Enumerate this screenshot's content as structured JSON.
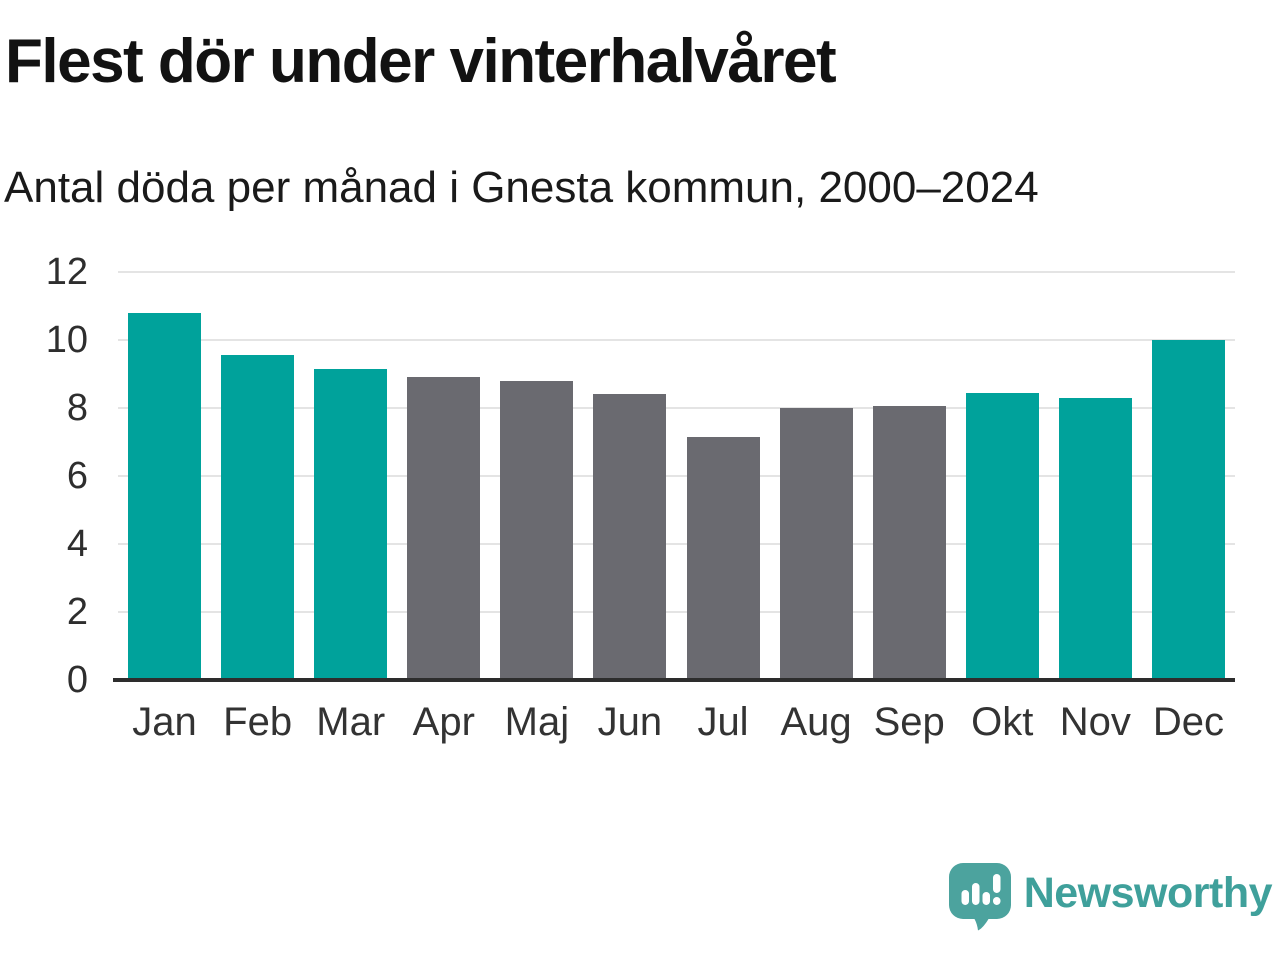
{
  "chart_data": {
    "type": "bar",
    "title": "Flest dör under vinterhalvåret",
    "subtitle": "Antal döda per månad i Gnesta kommun, 2000–2024",
    "categories": [
      "Jan",
      "Feb",
      "Mar",
      "Apr",
      "Maj",
      "Jun",
      "Jul",
      "Aug",
      "Sep",
      "Okt",
      "Nov",
      "Dec"
    ],
    "values": [
      10.8,
      9.55,
      9.15,
      8.9,
      8.8,
      8.4,
      7.15,
      8.0,
      8.05,
      8.45,
      8.3,
      10.0
    ],
    "highlighted": [
      true,
      true,
      true,
      false,
      false,
      false,
      false,
      false,
      false,
      true,
      true,
      true
    ],
    "ylabel": "",
    "xlabel": "",
    "ylim": [
      0,
      12
    ],
    "yticks": [
      0,
      2,
      4,
      6,
      8,
      10,
      12
    ],
    "grid": true,
    "legend": "none",
    "colors": {
      "highlight": "#00a29b",
      "base": "#6a6a70",
      "gridline": "#e4e4e4",
      "axis_line": "#2d2d2d",
      "tick_label": "#333333"
    }
  },
  "footer": {
    "brand": "Newsworthy",
    "brand_color": "#3fa09b",
    "logo_icon": "speech-bubble-bar-chart-exclamation"
  }
}
